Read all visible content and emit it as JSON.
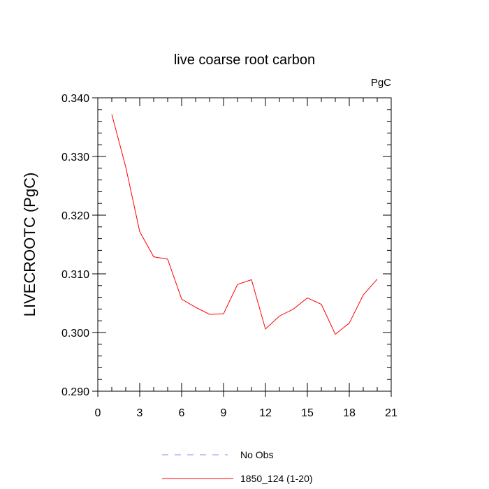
{
  "chart_data": {
    "type": "line",
    "title": "live coarse root carbon",
    "units_label": "PgC",
    "ylabel": "LIVECROOTC  (PgC)",
    "xlabel": "",
    "xlim": [
      0,
      21
    ],
    "ylim": [
      0.29,
      0.34
    ],
    "x_ticks": [
      0,
      3,
      6,
      9,
      12,
      15,
      18,
      21
    ],
    "x_tick_labels": [
      "0",
      "3",
      "6",
      "9",
      "12",
      "15",
      "18",
      "21"
    ],
    "y_ticks": [
      0.29,
      0.3,
      0.31,
      0.32,
      0.33,
      0.34
    ],
    "y_tick_labels": [
      "0.290",
      "0.300",
      "0.310",
      "0.320",
      "0.330",
      "0.340"
    ],
    "x_minor_step": 1,
    "y_minor_step": 0.002,
    "grid": false,
    "legend_position": "bottom-center",
    "series": [
      {
        "name": "1850_124 (1-20)",
        "color": "#ff0000",
        "style": "solid",
        "x": [
          1,
          2,
          3,
          4,
          5,
          6,
          7,
          8,
          9,
          10,
          11,
          12,
          13,
          14,
          15,
          16,
          17,
          18,
          19,
          20
        ],
        "values": [
          0.3372,
          0.3282,
          0.3172,
          0.3129,
          0.3125,
          0.3057,
          0.3043,
          0.3031,
          0.3032,
          0.3082,
          0.309,
          0.3006,
          0.3028,
          0.304,
          0.3059,
          0.3048,
          0.2997,
          0.3016,
          0.3064,
          0.3091
        ]
      }
    ],
    "legend": [
      {
        "label": "No Obs",
        "color": "#8888ff",
        "style": "dashed"
      },
      {
        "label": "1850_124 (1-20)",
        "color": "#ff0000",
        "style": "solid"
      }
    ]
  }
}
